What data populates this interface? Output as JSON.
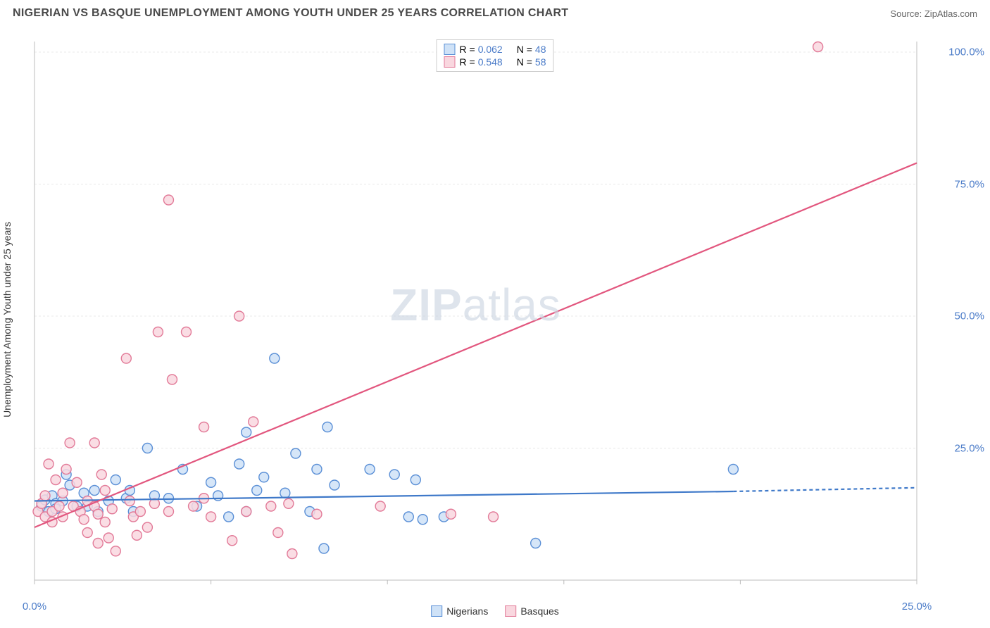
{
  "title": "NIGERIAN VS BASQUE UNEMPLOYMENT AMONG YOUTH UNDER 25 YEARS CORRELATION CHART",
  "source_label": "Source:",
  "source_name": "ZipAtlas.com",
  "watermark_a": "ZIP",
  "watermark_b": "atlas",
  "chart": {
    "type": "scatter",
    "ylabel": "Unemployment Among Youth under 25 years",
    "xlim": [
      0,
      25
    ],
    "ylim": [
      0,
      102
    ],
    "xticks": [
      0,
      5,
      10,
      15,
      20,
      25
    ],
    "xtick_labels": [
      "0.0%",
      "",
      "",
      "",
      "",
      "25.0%"
    ],
    "yticks": [
      25,
      50,
      75,
      100
    ],
    "ytick_labels": [
      "25.0%",
      "50.0%",
      "75.0%",
      "100.0%"
    ],
    "grid_color": "#e8e8e8",
    "axis_color": "#bcbcbc",
    "background_color": "#ffffff",
    "label_fontsize": 14,
    "tick_fontcolor": "#4a7bc8",
    "marker_radius": 7,
    "marker_stroke_width": 1.4,
    "series": [
      {
        "name": "Nigerians",
        "fill": "#cfe2f7",
        "stroke": "#5a8fd6",
        "line_color": "#3f79c9",
        "line_width": 2.2,
        "R": "0.062",
        "N": "48",
        "regression": {
          "x1": 0,
          "y1": 15.0,
          "x2": 19.8,
          "y2": 16.8,
          "dash_x2": 25,
          "dash_y2": 17.5
        },
        "points": [
          [
            0.2,
            14.0
          ],
          [
            0.3,
            15.2
          ],
          [
            0.4,
            13.0
          ],
          [
            0.5,
            16.0
          ],
          [
            0.6,
            14.5
          ],
          [
            0.6,
            13.5
          ],
          [
            0.8,
            15.0
          ],
          [
            0.9,
            20.0
          ],
          [
            1.0,
            18.0
          ],
          [
            1.2,
            14.0
          ],
          [
            1.4,
            16.5
          ],
          [
            1.5,
            14.0
          ],
          [
            1.7,
            17.0
          ],
          [
            1.8,
            13.0
          ],
          [
            2.1,
            15.0
          ],
          [
            2.3,
            19.0
          ],
          [
            2.6,
            15.5
          ],
          [
            2.7,
            17.0
          ],
          [
            2.8,
            13.0
          ],
          [
            3.2,
            25.0
          ],
          [
            3.4,
            16.0
          ],
          [
            3.8,
            15.5
          ],
          [
            4.2,
            21.0
          ],
          [
            4.6,
            14.0
          ],
          [
            5.0,
            18.5
          ],
          [
            5.2,
            16.0
          ],
          [
            5.5,
            12.0
          ],
          [
            5.8,
            22.0
          ],
          [
            6.0,
            28.0
          ],
          [
            6.3,
            17.0
          ],
          [
            6.5,
            19.5
          ],
          [
            6.8,
            42.0
          ],
          [
            7.1,
            16.5
          ],
          [
            7.4,
            24.0
          ],
          [
            7.8,
            13.0
          ],
          [
            8.0,
            21.0
          ],
          [
            8.2,
            6.0
          ],
          [
            8.3,
            29.0
          ],
          [
            8.5,
            18.0
          ],
          [
            9.5,
            21.0
          ],
          [
            10.2,
            20.0
          ],
          [
            10.6,
            12.0
          ],
          [
            10.8,
            19.0
          ],
          [
            11.0,
            11.5
          ],
          [
            11.6,
            12.0
          ],
          [
            14.2,
            7.0
          ],
          [
            19.8,
            21.0
          ],
          [
            6.0,
            13.0
          ]
        ]
      },
      {
        "name": "Basques",
        "fill": "#f9d7df",
        "stroke": "#e27a98",
        "line_color": "#e2567e",
        "line_width": 2.2,
        "R": "0.548",
        "N": "58",
        "regression": {
          "x1": 0,
          "y1": 10.0,
          "x2": 25,
          "y2": 79.0
        },
        "points": [
          [
            0.1,
            13.0
          ],
          [
            0.2,
            14.5
          ],
          [
            0.3,
            16.0
          ],
          [
            0.3,
            12.0
          ],
          [
            0.4,
            22.0
          ],
          [
            0.5,
            13.0
          ],
          [
            0.5,
            11.0
          ],
          [
            0.6,
            19.0
          ],
          [
            0.7,
            14.0
          ],
          [
            0.8,
            16.5
          ],
          [
            0.8,
            12.0
          ],
          [
            0.9,
            21.0
          ],
          [
            1.0,
            26.0
          ],
          [
            1.1,
            14.0
          ],
          [
            1.2,
            18.5
          ],
          [
            1.3,
            13.0
          ],
          [
            1.4,
            11.5
          ],
          [
            1.5,
            15.0
          ],
          [
            1.5,
            9.0
          ],
          [
            1.7,
            26.0
          ],
          [
            1.7,
            14.0
          ],
          [
            1.8,
            12.5
          ],
          [
            1.8,
            7.0
          ],
          [
            1.9,
            20.0
          ],
          [
            2.0,
            17.0
          ],
          [
            2.0,
            11.0
          ],
          [
            2.1,
            8.0
          ],
          [
            2.2,
            13.5
          ],
          [
            2.3,
            5.5
          ],
          [
            2.6,
            42.0
          ],
          [
            2.7,
            15.0
          ],
          [
            2.8,
            12.0
          ],
          [
            2.9,
            8.5
          ],
          [
            3.0,
            13.0
          ],
          [
            3.2,
            10.0
          ],
          [
            3.4,
            14.5
          ],
          [
            3.5,
            47.0
          ],
          [
            3.8,
            13.0
          ],
          [
            3.8,
            72.0
          ],
          [
            3.9,
            38.0
          ],
          [
            4.3,
            47.0
          ],
          [
            4.5,
            14.0
          ],
          [
            4.8,
            15.5
          ],
          [
            4.8,
            29.0
          ],
          [
            5.0,
            12.0
          ],
          [
            5.6,
            7.5
          ],
          [
            5.8,
            50.0
          ],
          [
            6.0,
            13.0
          ],
          [
            6.2,
            30.0
          ],
          [
            6.7,
            14.0
          ],
          [
            6.9,
            9.0
          ],
          [
            7.2,
            14.5
          ],
          [
            7.3,
            5.0
          ],
          [
            8.0,
            12.5
          ],
          [
            9.8,
            14.0
          ],
          [
            11.8,
            12.5
          ],
          [
            13.0,
            12.0
          ],
          [
            22.2,
            101.0
          ]
        ]
      }
    ],
    "legend_top_labels": {
      "R": "R =",
      "N": "N ="
    },
    "legend_bottom": [
      "Nigerians",
      "Basques"
    ]
  }
}
